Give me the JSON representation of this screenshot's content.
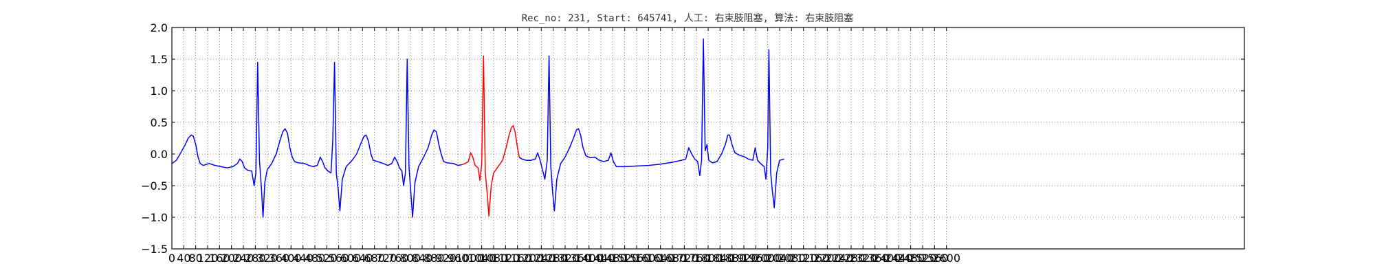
{
  "chart_data": {
    "type": "line",
    "title": "Rec_no: 231, Start: 645741, 人工: 右束肢阻塞, 算法: 右束肢阻塞",
    "xlabel": "",
    "ylabel": "",
    "xlim": [
      0,
      3600
    ],
    "ylim": [
      -1.5,
      2.0
    ],
    "grid": true,
    "x_ticks": [
      0,
      40,
      80,
      120,
      160,
      200,
      240,
      280,
      320,
      360,
      400,
      440,
      480,
      520,
      560,
      600,
      640,
      680,
      720,
      760,
      800,
      840,
      880,
      920,
      960,
      1000,
      1040,
      1080,
      1120,
      1160,
      1200,
      1240,
      1280,
      1320,
      1360,
      1400,
      1440,
      1480,
      1520,
      1560,
      1600,
      1640,
      1680,
      1720,
      1760,
      1800,
      1840,
      1880,
      1920,
      1960,
      2000,
      2040,
      2080,
      2120,
      2160,
      2200,
      2240,
      2280,
      2320,
      2360,
      2400,
      2440,
      2480,
      2520,
      2560,
      2600
    ],
    "x_tick_labels": [
      "0",
      "40",
      "80",
      "120",
      "160",
      "200",
      "240",
      "280",
      "320",
      "360",
      "400",
      "440",
      "480",
      "520",
      "560",
      "600",
      "640",
      "680",
      "720",
      "760",
      "800",
      "840",
      "880",
      "920",
      "960",
      "1000",
      "1040",
      "1080",
      "1120",
      "1160",
      "1200",
      "1240",
      "1280",
      "1320",
      "1360",
      "1400",
      "1440",
      "1480",
      "1520",
      "1560",
      "1600",
      "1640",
      "1680",
      "1720",
      "1760",
      "1800",
      "1840",
      "1880",
      "1920",
      "1960",
      "2000",
      "2040",
      "2080",
      "2120",
      "2160",
      "2200",
      "2240",
      "2280",
      "2320",
      "2360",
      "2400",
      "2440",
      "2480",
      "2520",
      "2560",
      "2600"
    ],
    "y_ticks": [
      -1.5,
      -1.0,
      -0.5,
      0.0,
      0.5,
      1.0,
      1.5,
      2.0
    ],
    "y_tick_labels": [
      "−1.5",
      "−1.0",
      "−0.5",
      "0.0",
      "0.5",
      "1.0",
      "1.5",
      "2.0"
    ],
    "series": [
      {
        "color": "#0000ff",
        "points": [
          [
            0,
            -0.15
          ],
          [
            15,
            -0.1
          ],
          [
            30,
            0.02
          ],
          [
            45,
            0.15
          ],
          [
            55,
            0.25
          ],
          [
            65,
            0.3
          ],
          [
            72,
            0.28
          ],
          [
            80,
            0.15
          ],
          [
            88,
            -0.05
          ],
          [
            95,
            -0.15
          ],
          [
            105,
            -0.18
          ],
          [
            125,
            -0.15
          ],
          [
            145,
            -0.18
          ],
          [
            165,
            -0.2
          ],
          [
            185,
            -0.22
          ],
          [
            205,
            -0.2
          ],
          [
            220,
            -0.15
          ],
          [
            228,
            -0.08
          ],
          [
            236,
            -0.12
          ],
          [
            244,
            -0.22
          ],
          [
            255,
            -0.26
          ],
          [
            268,
            -0.27
          ],
          [
            276,
            -0.5
          ],
          [
            282,
            -0.3
          ],
          [
            288,
            1.45
          ],
          [
            294,
            -0.1
          ],
          [
            300,
            -0.5
          ],
          [
            306,
            -1.0
          ],
          [
            312,
            -0.45
          ],
          [
            320,
            -0.25
          ],
          [
            335,
            -0.15
          ],
          [
            350,
            0.0
          ],
          [
            362,
            0.2
          ],
          [
            372,
            0.35
          ],
          [
            380,
            0.4
          ],
          [
            388,
            0.33
          ],
          [
            396,
            0.1
          ],
          [
            404,
            -0.05
          ],
          [
            412,
            -0.12
          ],
          [
            425,
            -0.14
          ],
          [
            445,
            -0.15
          ],
          [
            460,
            -0.18
          ],
          [
            475,
            -0.2
          ],
          [
            488,
            -0.18
          ],
          [
            498,
            -0.05
          ],
          [
            506,
            -0.12
          ],
          [
            514,
            -0.22
          ],
          [
            524,
            -0.27
          ],
          [
            534,
            -0.3
          ],
          [
            540,
            0.2
          ],
          [
            546,
            1.45
          ],
          [
            552,
            -0.3
          ],
          [
            558,
            -0.55
          ],
          [
            564,
            -0.9
          ],
          [
            572,
            -0.4
          ],
          [
            585,
            -0.2
          ],
          [
            605,
            -0.1
          ],
          [
            620,
            0.0
          ],
          [
            633,
            0.15
          ],
          [
            645,
            0.28
          ],
          [
            652,
            0.3
          ],
          [
            660,
            0.2
          ],
          [
            668,
            0.0
          ],
          [
            676,
            -0.1
          ],
          [
            690,
            -0.12
          ],
          [
            710,
            -0.15
          ],
          [
            725,
            -0.18
          ],
          [
            738,
            -0.15
          ],
          [
            748,
            -0.05
          ],
          [
            756,
            -0.12
          ],
          [
            764,
            -0.22
          ],
          [
            772,
            -0.27
          ],
          [
            778,
            -0.5
          ],
          [
            784,
            -0.3
          ],
          [
            790,
            1.5
          ],
          [
            796,
            -0.2
          ],
          [
            802,
            -0.6
          ],
          [
            808,
            -1.0
          ],
          [
            816,
            -0.45
          ],
          [
            828,
            -0.2
          ],
          [
            845,
            -0.05
          ],
          [
            860,
            0.1
          ],
          [
            872,
            0.3
          ],
          [
            880,
            0.38
          ],
          [
            888,
            0.35
          ],
          [
            896,
            0.15
          ],
          [
            904,
            0.0
          ],
          [
            912,
            -0.12
          ],
          [
            925,
            -0.14
          ],
          [
            945,
            -0.15
          ],
          [
            960,
            -0.18
          ],
          [
            972,
            -0.17
          ]
        ]
      },
      {
        "color": "#ff0000",
        "points": [
          [
            972,
            -0.17
          ],
          [
            985,
            -0.15
          ],
          [
            995,
            -0.12
          ],
          [
            1003,
            0.02
          ],
          [
            1010,
            -0.05
          ],
          [
            1018,
            -0.18
          ],
          [
            1028,
            -0.22
          ],
          [
            1034,
            -0.42
          ],
          [
            1040,
            -0.15
          ],
          [
            1046,
            1.55
          ],
          [
            1052,
            -0.3
          ],
          [
            1058,
            -0.6
          ],
          [
            1064,
            -0.98
          ],
          [
            1072,
            -0.5
          ],
          [
            1080,
            -0.3
          ],
          [
            1095,
            -0.2
          ],
          [
            1110,
            -0.1
          ],
          [
            1122,
            0.1
          ],
          [
            1132,
            0.3
          ],
          [
            1140,
            0.42
          ],
          [
            1146,
            0.45
          ],
          [
            1152,
            0.35
          ],
          [
            1160,
            0.1
          ],
          [
            1166,
            -0.05
          ]
        ]
      },
      {
        "color": "#0000ff",
        "points": [
          [
            1166,
            -0.05
          ],
          [
            1175,
            -0.08
          ],
          [
            1190,
            -0.1
          ],
          [
            1205,
            -0.1
          ],
          [
            1220,
            -0.08
          ],
          [
            1228,
            0.02
          ],
          [
            1236,
            -0.1
          ],
          [
            1244,
            -0.25
          ],
          [
            1252,
            -0.4
          ],
          [
            1260,
            -0.1
          ],
          [
            1266,
            1.55
          ],
          [
            1272,
            -0.2
          ],
          [
            1278,
            -0.6
          ],
          [
            1284,
            -0.9
          ],
          [
            1292,
            -0.4
          ],
          [
            1305,
            -0.15
          ],
          [
            1320,
            -0.05
          ],
          [
            1335,
            0.1
          ],
          [
            1348,
            0.25
          ],
          [
            1358,
            0.38
          ],
          [
            1365,
            0.4
          ],
          [
            1372,
            0.3
          ],
          [
            1380,
            0.1
          ],
          [
            1390,
            -0.03
          ],
          [
            1405,
            -0.06
          ],
          [
            1420,
            -0.05
          ],
          [
            1435,
            -0.1
          ],
          [
            1450,
            -0.12
          ],
          [
            1465,
            -0.1
          ],
          [
            1474,
            0.02
          ],
          [
            1482,
            -0.12
          ],
          [
            1492,
            -0.2
          ],
          [
            1520,
            -0.2
          ],
          [
            1560,
            -0.19
          ],
          [
            1600,
            -0.18
          ],
          [
            1640,
            -0.16
          ],
          [
            1680,
            -0.13
          ],
          [
            1710,
            -0.1
          ],
          [
            1725,
            -0.08
          ],
          [
            1735,
            0.1
          ],
          [
            1745,
            0.0
          ],
          [
            1755,
            -0.08
          ],
          [
            1765,
            -0.12
          ],
          [
            1772,
            -0.34
          ],
          [
            1778,
            -0.1
          ],
          [
            1784,
            1.82
          ],
          [
            1790,
            0.05
          ],
          [
            1796,
            0.15
          ],
          [
            1802,
            -0.1
          ],
          [
            1815,
            -0.14
          ],
          [
            1830,
            -0.12
          ],
          [
            1845,
            0.0
          ],
          [
            1858,
            0.15
          ],
          [
            1866,
            0.3
          ],
          [
            1872,
            0.3
          ],
          [
            1880,
            0.15
          ],
          [
            1890,
            0.02
          ],
          [
            1905,
            -0.02
          ],
          [
            1920,
            -0.04
          ],
          [
            1935,
            -0.08
          ],
          [
            1950,
            -0.1
          ],
          [
            1958,
            0.1
          ],
          [
            1966,
            -0.1
          ],
          [
            1976,
            -0.15
          ],
          [
            1988,
            -0.2
          ],
          [
            1994,
            -0.4
          ],
          [
            2000,
            0.1
          ],
          [
            2004,
            1.65
          ],
          [
            2010,
            -0.3
          ],
          [
            2016,
            -0.6
          ],
          [
            2022,
            -0.85
          ],
          [
            2030,
            -0.3
          ],
          [
            2040,
            -0.1
          ],
          [
            2055,
            -0.08
          ]
        ]
      }
    ]
  }
}
